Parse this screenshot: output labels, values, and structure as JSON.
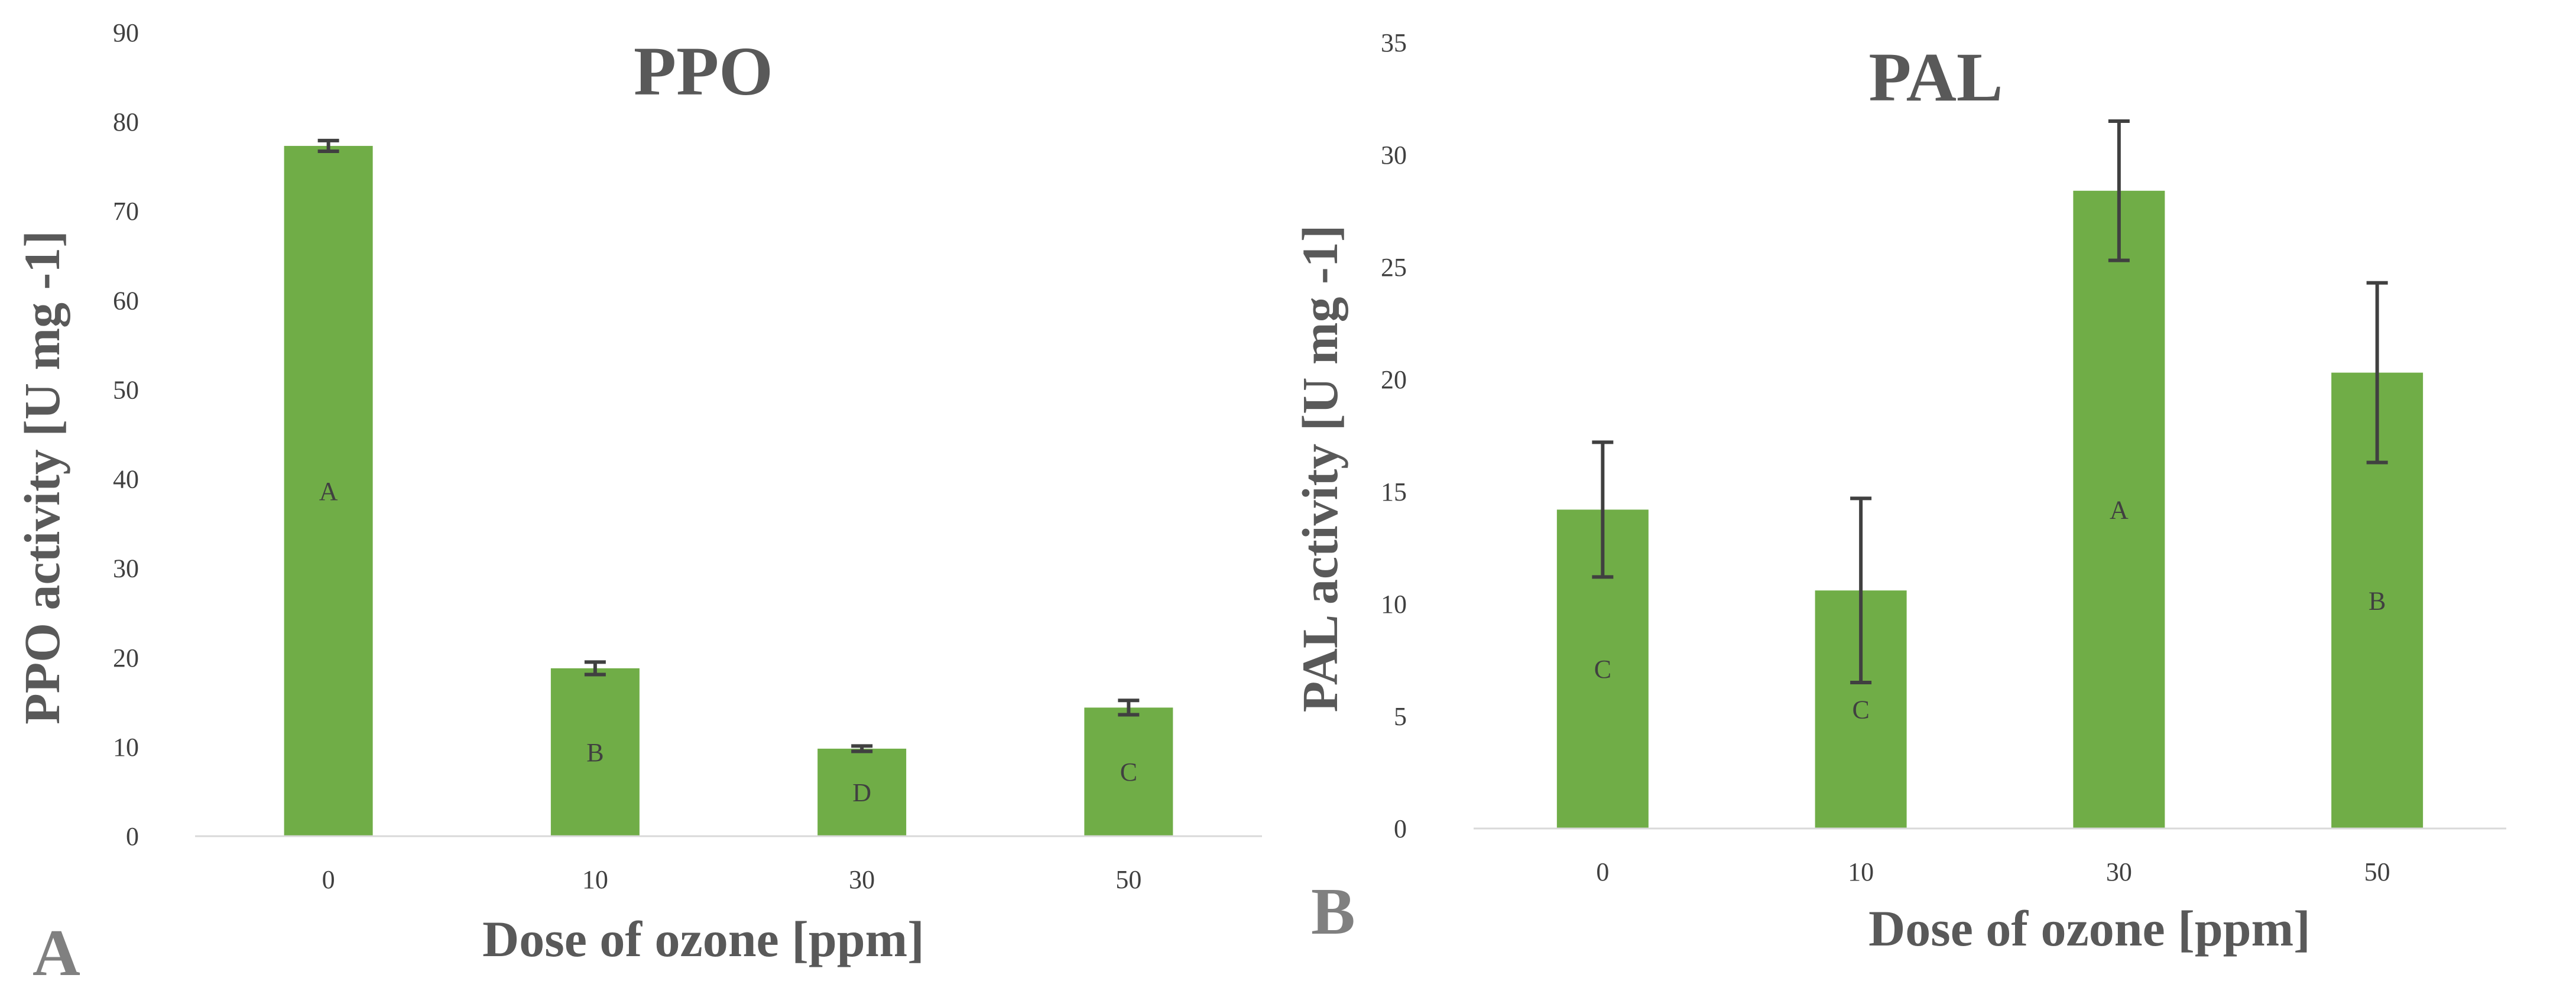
{
  "chart_data": [
    {
      "type": "bar",
      "panel_letter": "A",
      "title": "PPO",
      "xlabel": "Dose of ozone [ppm]",
      "ylabel": "PPO activity [U mg -1]",
      "categories": [
        "0",
        "10",
        "30",
        "50"
      ],
      "values": [
        77.3,
        18.8,
        9.8,
        14.4
      ],
      "errors": [
        0.6,
        0.7,
        0.3,
        0.8
      ],
      "letters": [
        "A",
        "B",
        "D",
        "C"
      ],
      "ylim": [
        0,
        90
      ],
      "yticks": [
        "0",
        "10",
        "20",
        "30",
        "40",
        "50",
        "60",
        "70",
        "80",
        "90"
      ],
      "bar_color": "#70AD47",
      "error_color": "#404040",
      "grid": false,
      "legend": "none"
    },
    {
      "type": "bar",
      "panel_letter": "B",
      "title": "PAL",
      "xlabel": "Dose of ozone [ppm]",
      "ylabel": "PAL activity [U mg -1]",
      "categories": [
        "0",
        "10",
        "30",
        "50"
      ],
      "values": [
        14.2,
        10.6,
        28.4,
        20.3
      ],
      "errors": [
        3.0,
        4.1,
        3.1,
        4.0
      ],
      "letters": [
        "C",
        "C",
        "A",
        "B"
      ],
      "ylim": [
        0,
        35
      ],
      "yticks": [
        "0",
        "5",
        "10",
        "15",
        "20",
        "25",
        "30",
        "35"
      ],
      "bar_color": "#70AD47",
      "error_color": "#404040",
      "grid": false,
      "legend": "none"
    }
  ]
}
